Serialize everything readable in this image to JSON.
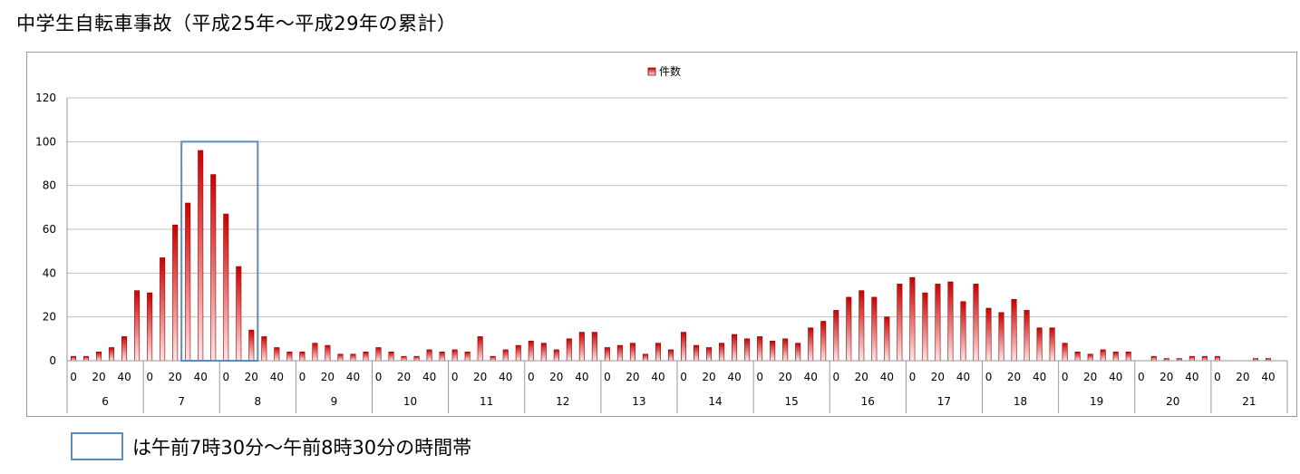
{
  "title": "中学生自転車事故（平成25年～平成29年の累計）",
  "note": {
    "text": "は午前7時30分～午前8時30分の時間帯",
    "box_color": "#5b8bbf"
  },
  "chart_data": {
    "type": "bar",
    "title": "",
    "xlabel": "",
    "ylabel": "",
    "ylim": [
      0,
      120
    ],
    "yticks": [
      0,
      20,
      40,
      60,
      80,
      100,
      120
    ],
    "grid": true,
    "legend_position": "top-center",
    "colors": {
      "bar_top": "#cc0000",
      "bar_bottom": "#ffe6e6",
      "bar_edge": "#8b0000",
      "highlight": "#5b8bbf",
      "grid": "#bfbfbf"
    },
    "hours": [
      "6",
      "7",
      "8",
      "9",
      "10",
      "11",
      "12",
      "13",
      "14",
      "15",
      "16",
      "17",
      "18",
      "19",
      "20",
      "21"
    ],
    "minute_labels": [
      "0",
      "",
      "20",
      "",
      "40",
      ""
    ],
    "highlight": {
      "start_hour": "7",
      "start_minute": 30,
      "end_hour": "8",
      "end_minute": 30
    },
    "series": [
      {
        "name": "件数",
        "values": [
          2,
          2,
          4,
          6,
          11,
          32,
          31,
          47,
          62,
          72,
          96,
          85,
          67,
          43,
          14,
          11,
          6,
          4,
          4,
          8,
          7,
          3,
          3,
          4,
          6,
          4,
          2,
          2,
          5,
          4,
          5,
          4,
          11,
          2,
          5,
          7,
          9,
          8,
          5,
          10,
          13,
          13,
          6,
          7,
          8,
          3,
          8,
          5,
          13,
          7,
          6,
          8,
          12,
          10,
          11,
          9,
          10,
          8,
          15,
          18,
          23,
          29,
          32,
          29,
          20,
          35,
          38,
          31,
          35,
          36,
          27,
          35,
          24,
          22,
          28,
          23,
          15,
          15,
          8,
          4,
          3,
          5,
          4,
          4,
          0,
          2,
          1,
          1,
          2,
          2,
          2,
          0,
          0,
          1,
          1,
          0
        ]
      }
    ]
  }
}
